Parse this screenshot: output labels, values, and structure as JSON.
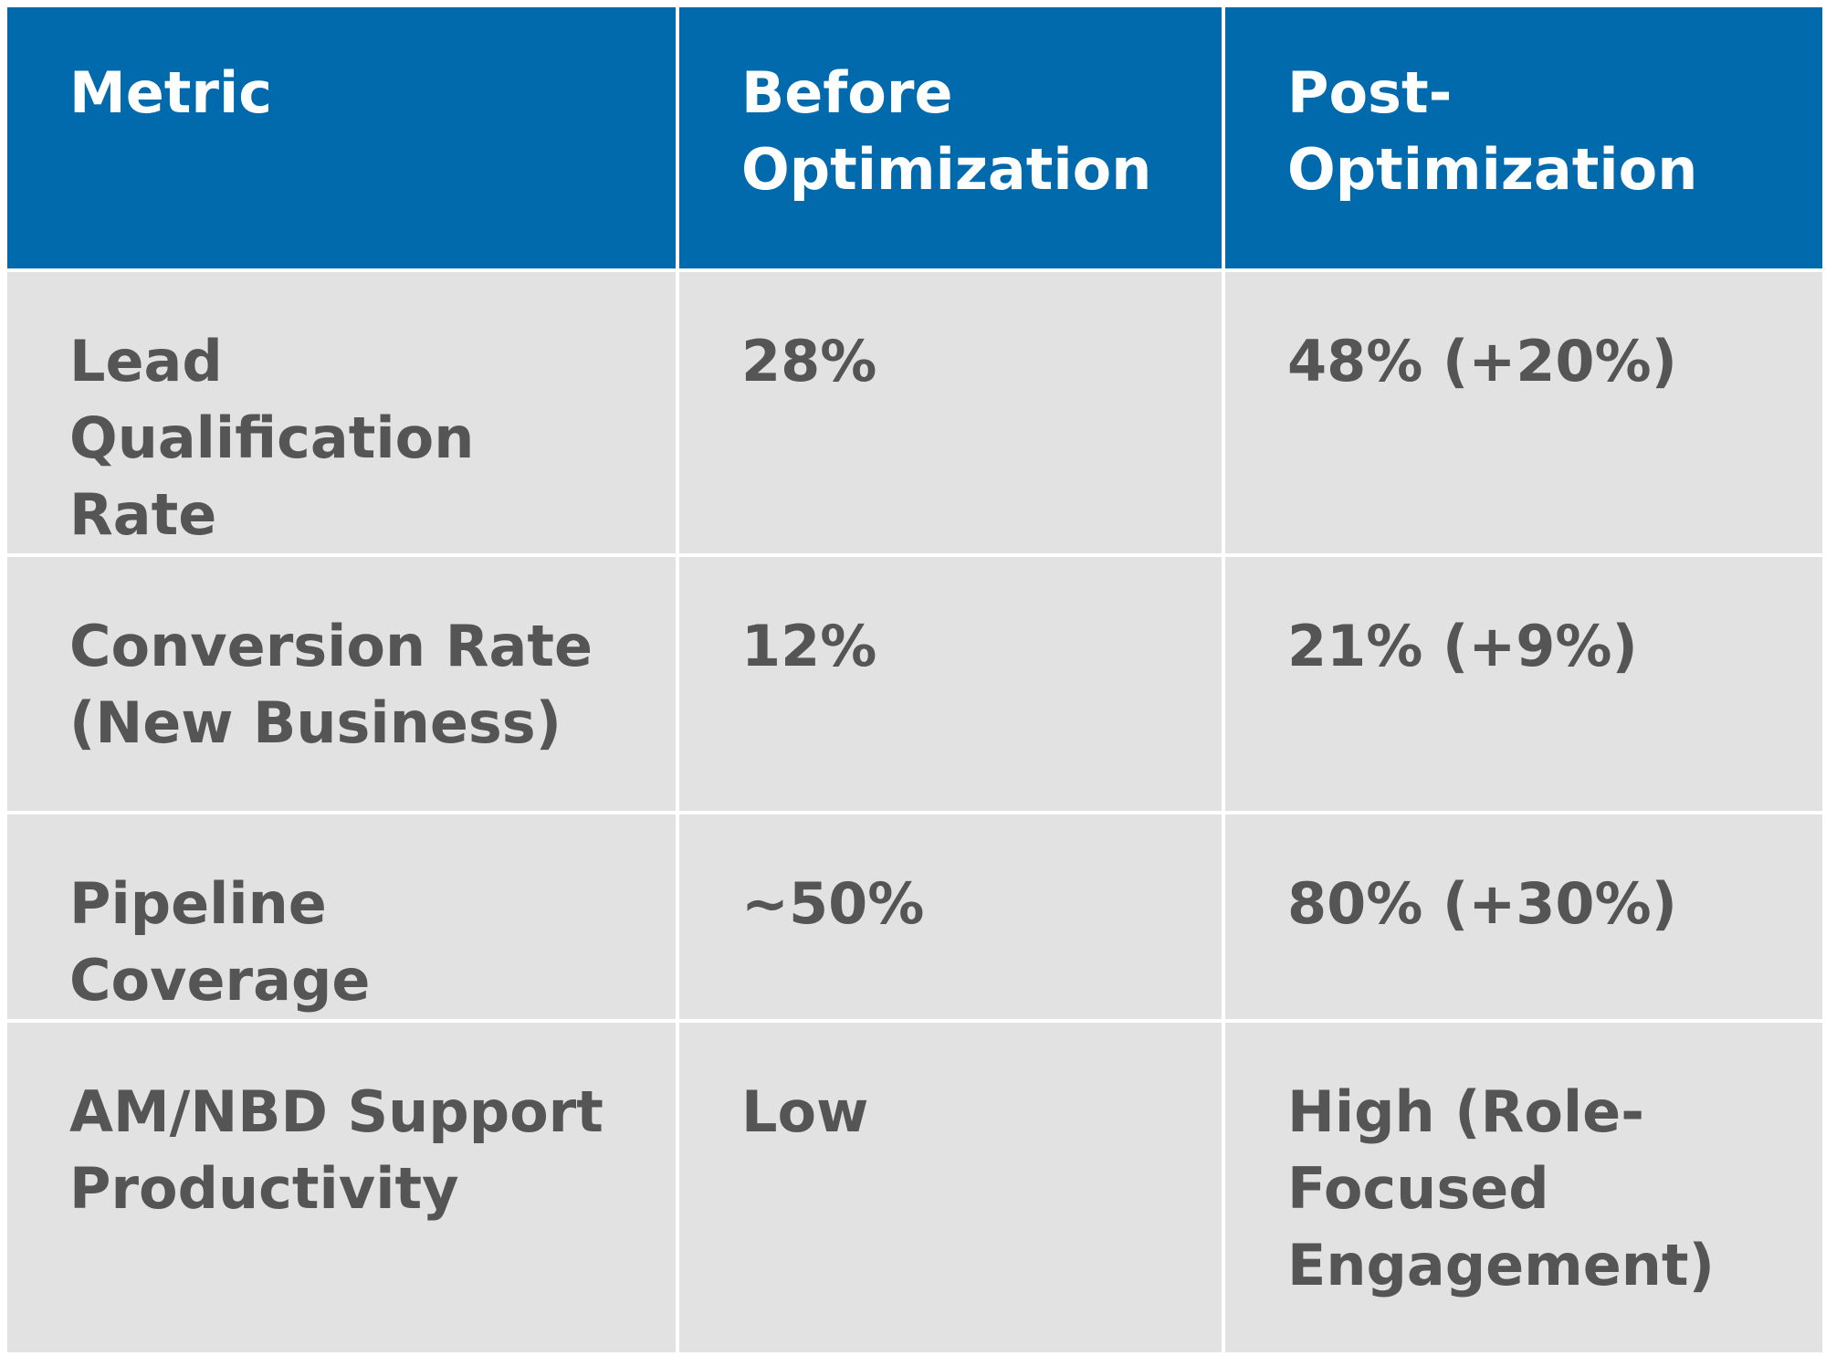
{
  "table": {
    "header": [
      "Metric",
      "Before Optimization",
      "Post-Optimization"
    ],
    "rows": [
      [
        "Lead Qualification Rate",
        "28%",
        "48% (+20%)"
      ],
      [
        "Conversion Rate (New Business)",
        "12%",
        "21% (+9%)"
      ],
      [
        "Pipeline Coverage",
        "~50%",
        "80% (+30%)"
      ],
      [
        "AM/NBD Support Productivity",
        "Low",
        "High (Role-Focused Engagement)"
      ]
    ]
  }
}
